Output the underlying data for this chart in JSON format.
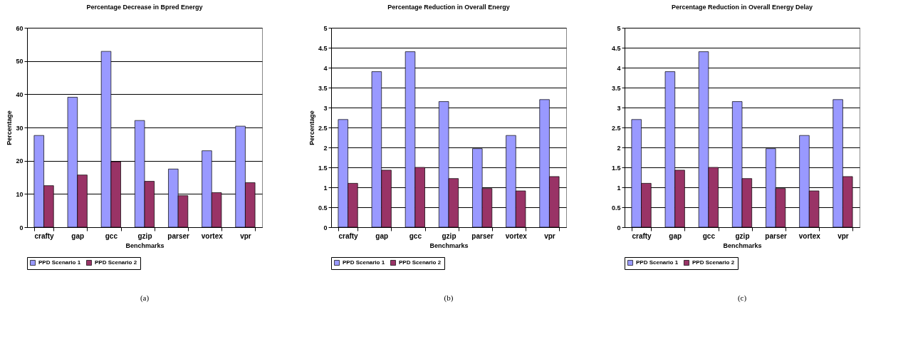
{
  "chart_data": [
    {
      "type": "bar",
      "title": "Percentage Decrease in Bpred Energy",
      "xlabel": "Benchmarks",
      "ylabel": "Percentage",
      "categories": [
        "crafty",
        "gap",
        "gcc",
        "gzip",
        "parser",
        "vortex",
        "vpr"
      ],
      "series": [
        {
          "name": "PPD Scenario 1",
          "color": "#9999ff",
          "values": [
            27.6,
            39.1,
            52.9,
            32.1,
            17.5,
            23.0,
            30.4
          ]
        },
        {
          "name": "PPD Scenario 2",
          "color": "#993366",
          "values": [
            12.5,
            15.7,
            19.7,
            13.8,
            9.5,
            10.4,
            13.4
          ]
        }
      ],
      "ylim": [
        0,
        60
      ],
      "yticks": [
        0,
        10,
        20,
        30,
        40,
        50,
        60
      ],
      "grid": "y",
      "legend": "bottom",
      "annotations": [
        "(a)"
      ]
    },
    {
      "type": "bar",
      "title": "Percentage Reduction in Overall Energy",
      "xlabel": "Benchmarks",
      "ylabel": "Percentage",
      "categories": [
        "crafty",
        "gap",
        "gcc",
        "gzip",
        "parser",
        "vortex",
        "vpr"
      ],
      "series": [
        {
          "name": "PPD Scenario 1",
          "color": "#9999ff",
          "values": [
            2.7,
            3.9,
            4.4,
            3.15,
            1.97,
            2.3,
            3.2
          ]
        },
        {
          "name": "PPD Scenario 2",
          "color": "#993366",
          "values": [
            1.1,
            1.43,
            1.5,
            1.22,
            0.97,
            0.91,
            1.27
          ]
        }
      ],
      "ylim": [
        0,
        5
      ],
      "yticks": [
        0,
        0.5,
        1,
        1.5,
        2,
        2.5,
        3,
        3.5,
        4,
        4.5,
        5
      ],
      "grid": "y",
      "legend": "bottom",
      "annotations": [
        "(b)"
      ]
    },
    {
      "type": "bar",
      "title": "Percentage Reduction in Overall Energy Delay",
      "xlabel": "Benchmarks",
      "categories": [
        "crafty",
        "gap",
        "gcc",
        "gzip",
        "parser",
        "vortex",
        "vpr"
      ],
      "series": [
        {
          "name": "PPD Scenario 1",
          "color": "#9999ff",
          "values": [
            2.7,
            3.9,
            4.4,
            3.15,
            1.97,
            2.3,
            3.2
          ]
        },
        {
          "name": "PPD Scenario 2",
          "color": "#993366",
          "values": [
            1.1,
            1.43,
            1.5,
            1.22,
            0.97,
            0.91,
            1.27
          ]
        }
      ],
      "ylim": [
        0,
        5
      ],
      "yticks": [
        0,
        0.5,
        1,
        1.5,
        2,
        2.5,
        3,
        3.5,
        4,
        4.5,
        5
      ],
      "grid": "y",
      "legend": "bottom",
      "annotations": [
        "(c)"
      ]
    }
  ]
}
